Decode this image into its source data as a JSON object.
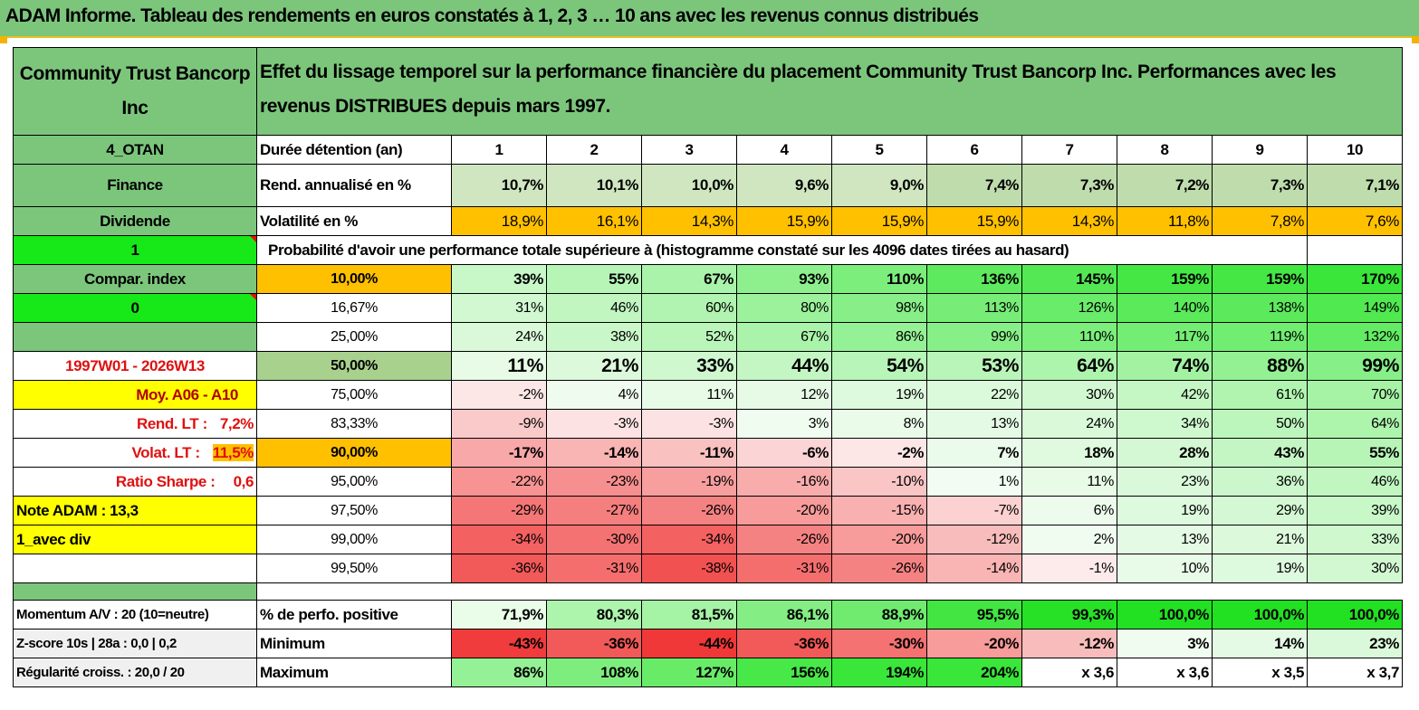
{
  "title": "ADAM Informe. Tableau des rendements en euros constatés à 1, 2, 3 … 10 ans avec les revenus connus distribués",
  "header": {
    "company": "Community Trust Bancorp Inc",
    "description": "Effet du lissage temporel sur la performance financière du placement Community Trust Bancorp Inc. Performances avec les revenus DISTRIBUES depuis mars 1997."
  },
  "left_panel": {
    "code": "4_OTAN",
    "sector": "Finance",
    "type": "Dividende",
    "flag1": "1",
    "compar_index": "Compar. index",
    "flag0": "0",
    "period": "1997W01 - 2026W13",
    "moy": "Moy. A06 - A10",
    "rend_lt_label": "Rend. LT :",
    "rend_lt_value": "7,2%",
    "volat_lt_label": "Volat. LT :",
    "volat_lt_value": "11,5%",
    "sharpe_label": "Ratio Sharpe :",
    "sharpe_value": "0,6",
    "note_adam": "Note ADAM : 13,3",
    "avec_div": "1_avec div",
    "momentum": "Momentum A/V : 20 (10=neutre)",
    "zscore": "Z-score 10s | 28a : 0,0 | 0,2",
    "regularite": "Régularité croiss. : 20,0 / 20"
  },
  "rows": {
    "duree_label": "Durée détention (an)",
    "years": [
      "1",
      "2",
      "3",
      "4",
      "5",
      "6",
      "7",
      "8",
      "9",
      "10"
    ],
    "rend_label": "Rend. annualisé en %",
    "rend": [
      "10,7%",
      "10,1%",
      "10,0%",
      "9,6%",
      "9,0%",
      "7,4%",
      "7,3%",
      "7,2%",
      "7,3%",
      "7,1%"
    ],
    "vol_label": "Volatilité en %",
    "vol": [
      "18,9%",
      "16,1%",
      "14,3%",
      "15,9%",
      "15,9%",
      "15,9%",
      "14,3%",
      "11,8%",
      "7,8%",
      "7,6%"
    ],
    "prob_label": "Probabilité d'avoir une performance totale supérieure à (histogramme constaté sur les 4096 dates tirées au hasard)",
    "quantiles": [
      {
        "p": "10,00%",
        "v": [
          "39%",
          "55%",
          "67%",
          "93%",
          "110%",
          "136%",
          "145%",
          "159%",
          "159%",
          "170%"
        ]
      },
      {
        "p": "16,67%",
        "v": [
          "31%",
          "46%",
          "60%",
          "80%",
          "98%",
          "113%",
          "126%",
          "140%",
          "138%",
          "149%"
        ]
      },
      {
        "p": "25,00%",
        "v": [
          "24%",
          "38%",
          "52%",
          "67%",
          "86%",
          "99%",
          "110%",
          "117%",
          "119%",
          "132%"
        ]
      },
      {
        "p": "50,00%",
        "v": [
          "11%",
          "21%",
          "33%",
          "44%",
          "54%",
          "53%",
          "64%",
          "74%",
          "88%",
          "99%"
        ]
      },
      {
        "p": "75,00%",
        "v": [
          "-2%",
          "4%",
          "11%",
          "12%",
          "19%",
          "22%",
          "30%",
          "42%",
          "61%",
          "70%"
        ]
      },
      {
        "p": "83,33%",
        "v": [
          "-9%",
          "-3%",
          "-3%",
          "3%",
          "8%",
          "13%",
          "24%",
          "34%",
          "50%",
          "64%"
        ]
      },
      {
        "p": "90,00%",
        "v": [
          "-17%",
          "-14%",
          "-11%",
          "-6%",
          "-2%",
          "7%",
          "18%",
          "28%",
          "43%",
          "55%"
        ]
      },
      {
        "p": "95,00%",
        "v": [
          "-22%",
          "-23%",
          "-19%",
          "-16%",
          "-10%",
          "1%",
          "11%",
          "23%",
          "36%",
          "46%"
        ]
      },
      {
        "p": "97,50%",
        "v": [
          "-29%",
          "-27%",
          "-26%",
          "-20%",
          "-15%",
          "-7%",
          "6%",
          "19%",
          "29%",
          "39%"
        ]
      },
      {
        "p": "99,00%",
        "v": [
          "-34%",
          "-30%",
          "-34%",
          "-26%",
          "-20%",
          "-12%",
          "2%",
          "13%",
          "21%",
          "33%"
        ]
      },
      {
        "p": "99,50%",
        "v": [
          "-36%",
          "-31%",
          "-38%",
          "-31%",
          "-26%",
          "-14%",
          "-1%",
          "10%",
          "19%",
          "30%"
        ]
      }
    ],
    "pos_label": "% de perfo. positive",
    "pos": [
      "71,9%",
      "80,3%",
      "81,5%",
      "86,1%",
      "88,9%",
      "95,5%",
      "99,3%",
      "100,0%",
      "100,0%",
      "100,0%"
    ],
    "min_label": "Minimum",
    "min": [
      "-43%",
      "-36%",
      "-44%",
      "-36%",
      "-30%",
      "-20%",
      "-12%",
      "3%",
      "14%",
      "23%"
    ],
    "max_label": "Maximum",
    "max": [
      "86%",
      "108%",
      "127%",
      "156%",
      "194%",
      "204%",
      "x 3,6",
      "x 3,6",
      "x 3,5",
      "x 3,7"
    ]
  },
  "colors": {
    "header_green": "#7cc67c",
    "bright_green": "#17e817",
    "highlight_yellow": "#ffff00",
    "highlight_orange": "#ffc000",
    "label_red": "#e01010"
  }
}
